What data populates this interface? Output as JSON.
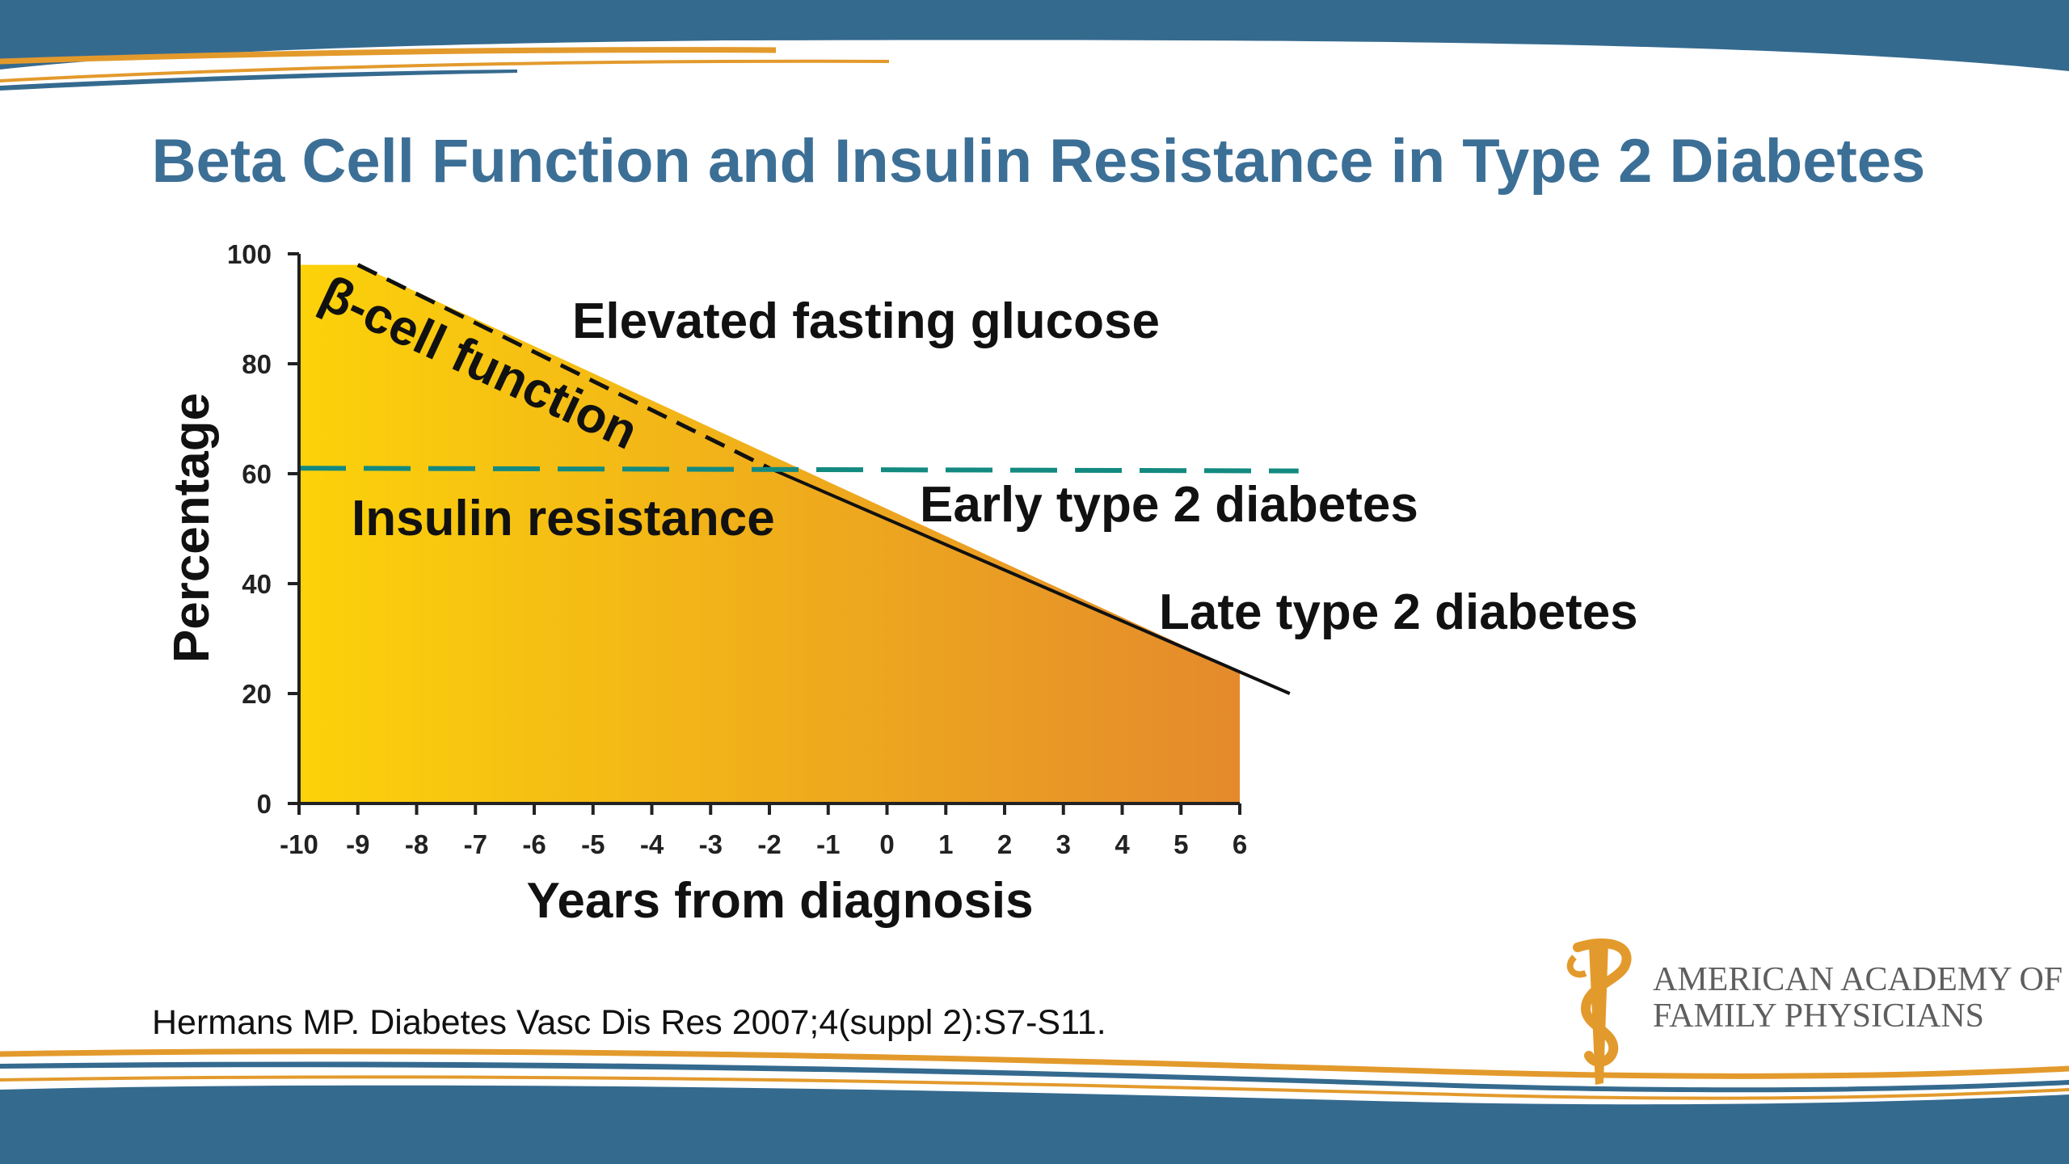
{
  "slide": {
    "title": "Beta Cell Function and Insulin Resistance in Type 2 Diabetes",
    "citation": "Hermans MP. Diabetes Vasc Dis Res 2007;4(suppl 2):S7-S11.",
    "logo": {
      "line1": "AMERICAN ACADEMY OF",
      "line2": "FAMILY PHYSICIANS"
    },
    "colors": {
      "title": "#3c6f96",
      "band_blue": "#356a8f",
      "band_orange": "#e39a2c",
      "insulin": "#138a80",
      "fill_start": "#fcd20a",
      "fill_end": "#e48a2c",
      "logo_text": "#5e5e5e"
    }
  },
  "chart_data": {
    "type": "area",
    "xlabel": "Years from diagnosis",
    "ylabel": "Percentage",
    "xlim": [
      -10,
      6
    ],
    "ylim": [
      0,
      100
    ],
    "x_ticks": [
      -10,
      -9,
      -8,
      -7,
      -6,
      -5,
      -4,
      -3,
      -2,
      -1,
      0,
      1,
      2,
      3,
      4,
      5,
      6
    ],
    "x_tick_labels": [
      "-10",
      "-9",
      "-8",
      "-7",
      "-6",
      "-5",
      "-4",
      "-3",
      "-2",
      "-1",
      "0",
      "1",
      "2",
      "3",
      "4",
      "5",
      "6"
    ],
    "y_ticks": [
      0,
      20,
      40,
      60,
      80,
      100
    ],
    "y_tick_labels": [
      "0",
      "20",
      "40",
      "60",
      "80",
      "100"
    ],
    "series": [
      {
        "name": "β-cell function",
        "style": "area-with-line",
        "x": [
          -10,
          -9,
          -2,
          6.85
        ],
        "y": [
          98,
          98,
          61,
          20
        ],
        "fill_end_x": 6,
        "fill_end_y": 24
      },
      {
        "name": "Insulin resistance",
        "style": "dashed",
        "x": [
          -10,
          7
        ],
        "y": [
          61,
          60.5
        ]
      }
    ],
    "annotations": [
      {
        "text": "Elevated fasting glucose"
      },
      {
        "text": "Early type 2 diabetes"
      },
      {
        "text": "Late type 2 diabetes"
      }
    ],
    "grid": false,
    "legend": "none"
  }
}
